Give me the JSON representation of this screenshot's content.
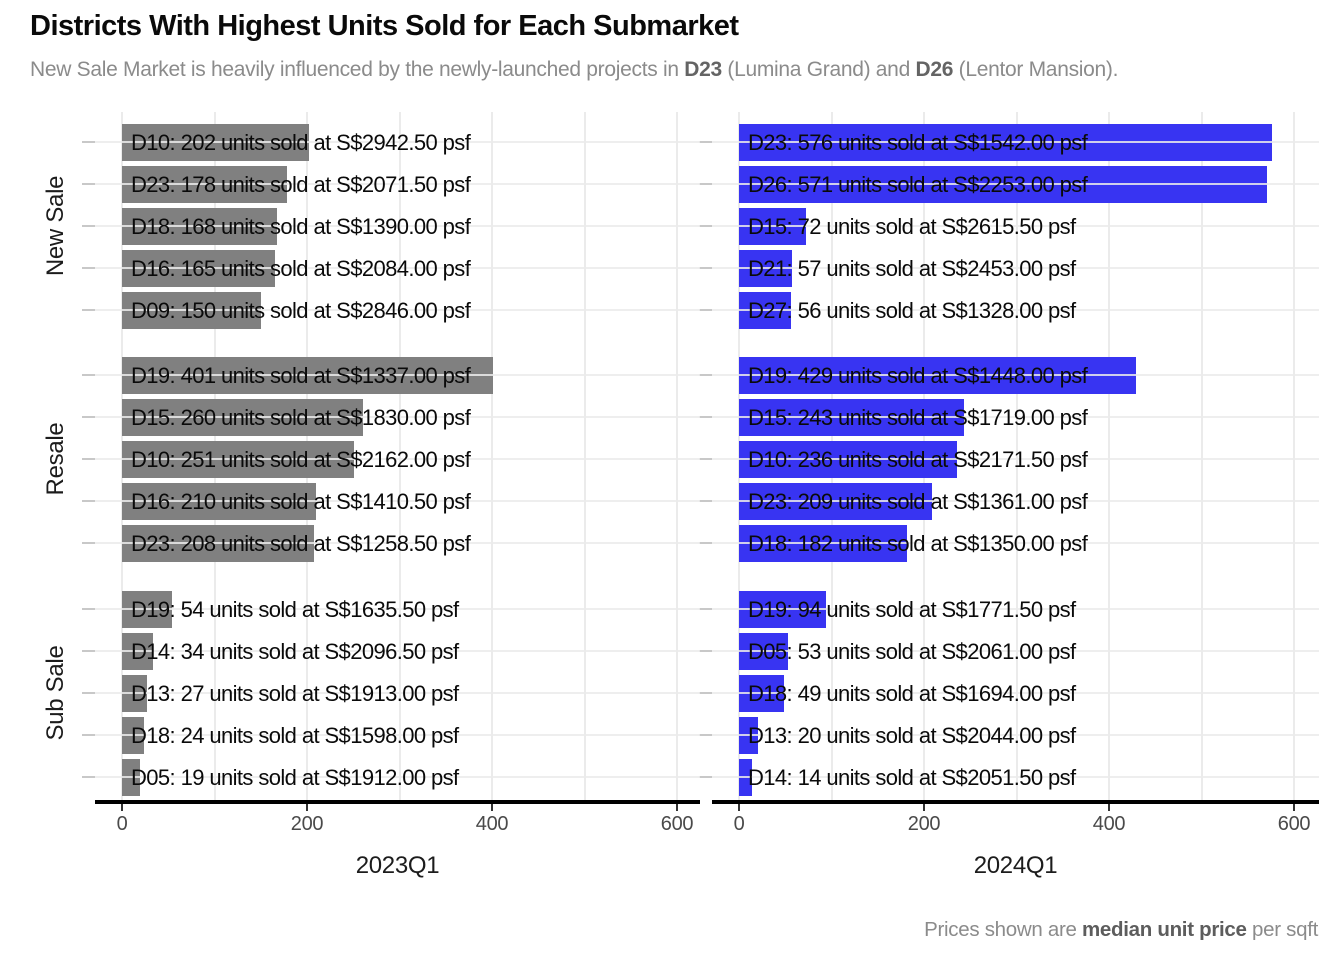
{
  "header": {
    "title": "Districts With Highest Units Sold for Each Submarket",
    "subtitle_segments": [
      {
        "text": "New Sale Market is heavily influenced by the newly-launched projects in ",
        "bold": false
      },
      {
        "text": "D23",
        "bold": true
      },
      {
        "text": " (Lumina Grand) and ",
        "bold": false
      },
      {
        "text": "D26",
        "bold": true
      },
      {
        "text": " (Lentor Mansion).",
        "bold": false
      }
    ]
  },
  "caption_segments": [
    {
      "text": "Prices shown are ",
      "bold": false
    },
    {
      "text": "median unit price",
      "bold": true
    },
    {
      "text": " per sqft",
      "bold": false
    }
  ],
  "chart_data": {
    "type": "bar",
    "orientation": "horizontal",
    "facet_rows": [
      "New Sale",
      "Resale",
      "Sub Sale"
    ],
    "facet_cols": [
      "2023Q1",
      "2024Q1"
    ],
    "x_ticks": [
      "0",
      "200",
      "400",
      "600"
    ],
    "x_minor_ticks": [
      100,
      300,
      500
    ],
    "xlim": [
      0,
      650
    ],
    "legend": "none",
    "grid": "light-gray major and minor vertical lines; light-gray horizontal line through each bar row",
    "colors": {
      "2023Q1": "#808080",
      "2024Q1": "#3834f2"
    },
    "units_label_color": "#0a0a0a",
    "panels": [
      {
        "quarter": "2023Q1",
        "submarket": "New Sale",
        "bars": [
          {
            "district": "D10",
            "units": 202,
            "price_psf": 2942.5,
            "label": "D10: 202 units sold at S$2942.50 psf"
          },
          {
            "district": "D23",
            "units": 178,
            "price_psf": 2071.5,
            "label": "D23: 178 units sold at S$2071.50 psf"
          },
          {
            "district": "D18",
            "units": 168,
            "price_psf": 1390.0,
            "label": "D18: 168 units sold at S$1390.00 psf"
          },
          {
            "district": "D16",
            "units": 165,
            "price_psf": 2084.0,
            "label": "D16: 165 units sold at S$2084.00 psf"
          },
          {
            "district": "D09",
            "units": 150,
            "price_psf": 2846.0,
            "label": "D09: 150 units sold at S$2846.00 psf"
          }
        ]
      },
      {
        "quarter": "2024Q1",
        "submarket": "New Sale",
        "bars": [
          {
            "district": "D23",
            "units": 576,
            "price_psf": 1542.0,
            "label": "D23: 576 units sold at S$1542.00 psf"
          },
          {
            "district": "D26",
            "units": 571,
            "price_psf": 2253.0,
            "label": "D26: 571 units sold at S$2253.00 psf"
          },
          {
            "district": "D15",
            "units": 72,
            "price_psf": 2615.5,
            "label": "D15: 72 units sold at S$2615.50 psf"
          },
          {
            "district": "D21",
            "units": 57,
            "price_psf": 2453.0,
            "label": "D21: 57 units sold at S$2453.00 psf"
          },
          {
            "district": "D27",
            "units": 56,
            "price_psf": 1328.0,
            "label": "D27: 56 units sold at S$1328.00 psf"
          }
        ]
      },
      {
        "quarter": "2023Q1",
        "submarket": "Resale",
        "bars": [
          {
            "district": "D19",
            "units": 401,
            "price_psf": 1337.0,
            "label": "D19: 401 units sold at S$1337.00 psf"
          },
          {
            "district": "D15",
            "units": 260,
            "price_psf": 1830.0,
            "label": "D15: 260 units sold at S$1830.00 psf"
          },
          {
            "district": "D10",
            "units": 251,
            "price_psf": 2162.0,
            "label": "D10: 251 units sold at S$2162.00 psf"
          },
          {
            "district": "D16",
            "units": 210,
            "price_psf": 1410.5,
            "label": "D16: 210 units sold at S$1410.50 psf"
          },
          {
            "district": "D23",
            "units": 208,
            "price_psf": 1258.5,
            "label": "D23: 208 units sold at S$1258.50 psf"
          }
        ]
      },
      {
        "quarter": "2024Q1",
        "submarket": "Resale",
        "bars": [
          {
            "district": "D19",
            "units": 429,
            "price_psf": 1448.0,
            "label": "D19: 429 units sold at S$1448.00 psf"
          },
          {
            "district": "D15",
            "units": 243,
            "price_psf": 1719.0,
            "label": "D15: 243 units sold at S$1719.00 psf"
          },
          {
            "district": "D10",
            "units": 236,
            "price_psf": 2171.5,
            "label": "D10: 236 units sold at S$2171.50 psf"
          },
          {
            "district": "D23",
            "units": 209,
            "price_psf": 1361.0,
            "label": "D23: 209 units sold at S$1361.00 psf"
          },
          {
            "district": "D18",
            "units": 182,
            "price_psf": 1350.0,
            "label": "D18: 182 units sold at S$1350.00 psf"
          }
        ]
      },
      {
        "quarter": "2023Q1",
        "submarket": "Sub Sale",
        "bars": [
          {
            "district": "D19",
            "units": 54,
            "price_psf": 1635.5,
            "label": "D19: 54 units sold at S$1635.50 psf"
          },
          {
            "district": "D14",
            "units": 34,
            "price_psf": 2096.5,
            "label": "D14: 34 units sold at S$2096.50 psf"
          },
          {
            "district": "D13",
            "units": 27,
            "price_psf": 1913.0,
            "label": "D13: 27 units sold at S$1913.00 psf"
          },
          {
            "district": "D18",
            "units": 24,
            "price_psf": 1598.0,
            "label": "D18: 24 units sold at S$1598.00 psf"
          },
          {
            "district": "D05",
            "units": 19,
            "price_psf": 1912.0,
            "label": "D05: 19 units sold at S$1912.00 psf"
          }
        ]
      },
      {
        "quarter": "2024Q1",
        "submarket": "Sub Sale",
        "bars": [
          {
            "district": "D19",
            "units": 94,
            "price_psf": 1771.5,
            "label": "D19: 94 units sold at S$1771.50 psf"
          },
          {
            "district": "D05",
            "units": 53,
            "price_psf": 2061.0,
            "label": "D05: 53 units sold at S$2061.00 psf"
          },
          {
            "district": "D18",
            "units": 49,
            "price_psf": 1694.0,
            "label": "D18: 49 units sold at S$1694.00 psf"
          },
          {
            "district": "D13",
            "units": 20,
            "price_psf": 2044.0,
            "label": "D13: 20 units sold at S$2044.00 psf"
          },
          {
            "district": "D14",
            "units": 14,
            "price_psf": 2051.5,
            "label": "D14: 14 units sold at S$2051.50 psf"
          }
        ]
      }
    ]
  }
}
